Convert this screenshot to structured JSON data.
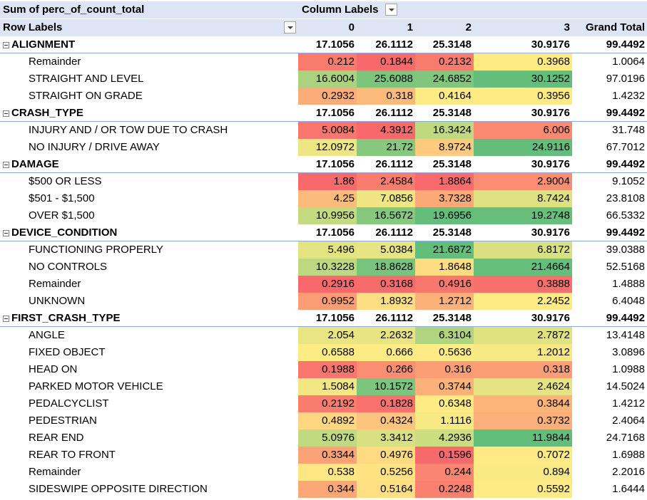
{
  "pivot": {
    "measure_label": "Sum of perc_of_count_total",
    "column_labels_label": "Column Labels",
    "row_labels_label": "Row Labels",
    "columns": [
      "0",
      "1",
      "2",
      "3"
    ],
    "grand_total_label": "Grand Total",
    "colors": {
      "header_bg": "#dde5f5",
      "low": "#f8696b",
      "mid": "#ffeb84",
      "high": "#63be7b"
    },
    "icons": {
      "collapse": "minus-box-icon",
      "filter": "dropdown-arrow-icon"
    },
    "groups": [
      {
        "name": "ALIGNMENT",
        "totals": [
          "17.1056",
          "26.1112",
          "25.3148",
          "30.9176"
        ],
        "grand_total": "99.4492",
        "rows": [
          {
            "label": "Remainder",
            "values": [
              "0.212",
              "0.1844",
              "0.2132",
              "0.3968"
            ],
            "grand_total": "1.0064"
          },
          {
            "label": "STRAIGHT AND LEVEL",
            "values": [
              "16.6004",
              "25.6088",
              "24.6852",
              "30.1252"
            ],
            "grand_total": "97.0196"
          },
          {
            "label": "STRAIGHT ON GRADE",
            "values": [
              "0.2932",
              "0.318",
              "0.4164",
              "0.3956"
            ],
            "grand_total": "1.4232"
          }
        ]
      },
      {
        "name": "CRASH_TYPE",
        "totals": [
          "17.1056",
          "26.1112",
          "25.3148",
          "30.9176"
        ],
        "grand_total": "99.4492",
        "rows": [
          {
            "label": "INJURY AND / OR TOW DUE TO CRASH",
            "values": [
              "5.0084",
              "4.3912",
              "16.3424",
              "6.006"
            ],
            "grand_total": "31.748"
          },
          {
            "label": "NO INJURY / DRIVE AWAY",
            "values": [
              "12.0972",
              "21.72",
              "8.9724",
              "24.9116"
            ],
            "grand_total": "67.7012"
          }
        ]
      },
      {
        "name": "DAMAGE",
        "totals": [
          "17.1056",
          "26.1112",
          "25.3148",
          "30.9176"
        ],
        "grand_total": "99.4492",
        "rows": [
          {
            "label": "$500 OR LESS",
            "values": [
              "1.86",
              "2.4584",
              "1.8864",
              "2.9004"
            ],
            "grand_total": "9.1052"
          },
          {
            "label": "$501 - $1,500",
            "values": [
              "4.25",
              "7.0856",
              "3.7328",
              "8.7424"
            ],
            "grand_total": "23.8108"
          },
          {
            "label": "OVER $1,500",
            "values": [
              "10.9956",
              "16.5672",
              "19.6956",
              "19.2748"
            ],
            "grand_total": "66.5332"
          }
        ]
      },
      {
        "name": "DEVICE_CONDITION",
        "totals": [
          "17.1056",
          "26.1112",
          "25.3148",
          "30.9176"
        ],
        "grand_total": "99.4492",
        "rows": [
          {
            "label": "FUNCTIONING PROPERLY",
            "values": [
              "5.496",
              "5.0384",
              "21.6872",
              "6.8172"
            ],
            "grand_total": "39.0388"
          },
          {
            "label": "NO CONTROLS",
            "values": [
              "10.3228",
              "18.8628",
              "1.8648",
              "21.4664"
            ],
            "grand_total": "52.5168"
          },
          {
            "label": "Remainder",
            "values": [
              "0.2916",
              "0.3168",
              "0.4916",
              "0.3888"
            ],
            "grand_total": "1.4888"
          },
          {
            "label": "UNKNOWN",
            "values": [
              "0.9952",
              "1.8932",
              "1.2712",
              "2.2452"
            ],
            "grand_total": "6.4048"
          }
        ]
      },
      {
        "name": "FIRST_CRASH_TYPE",
        "totals": [
          "17.1056",
          "26.1112",
          "25.3148",
          "30.9176"
        ],
        "grand_total": "99.4492",
        "rows": [
          {
            "label": "ANGLE",
            "values": [
              "2.054",
              "2.2632",
              "6.3104",
              "2.7872"
            ],
            "grand_total": "13.4148"
          },
          {
            "label": "FIXED OBJECT",
            "values": [
              "0.6588",
              "0.666",
              "0.5636",
              "1.2012"
            ],
            "grand_total": "3.0896"
          },
          {
            "label": "HEAD ON",
            "values": [
              "0.1988",
              "0.266",
              "0.316",
              "0.318"
            ],
            "grand_total": "1.0988"
          },
          {
            "label": "PARKED MOTOR VEHICLE",
            "values": [
              "1.5084",
              "10.1572",
              "0.3744",
              "2.4624"
            ],
            "grand_total": "14.5024"
          },
          {
            "label": "PEDALCYCLIST",
            "values": [
              "0.2192",
              "0.1828",
              "0.6348",
              "0.3844"
            ],
            "grand_total": "1.4212"
          },
          {
            "label": "PEDESTRIAN",
            "values": [
              "0.4892",
              "0.4324",
              "1.1116",
              "0.3732"
            ],
            "grand_total": "2.4064"
          },
          {
            "label": "REAR END",
            "values": [
              "5.0976",
              "3.3412",
              "4.2936",
              "11.9844"
            ],
            "grand_total": "24.7168"
          },
          {
            "label": "REAR TO FRONT",
            "values": [
              "0.3344",
              "0.4976",
              "0.1596",
              "0.7072"
            ],
            "grand_total": "1.6988"
          },
          {
            "label": "Remainder",
            "values": [
              "0.538",
              "0.5256",
              "0.244",
              "0.894"
            ],
            "grand_total": "2.2016"
          },
          {
            "label": "SIDESWIPE OPPOSITE DIRECTION",
            "values": [
              "0.344",
              "0.5164",
              "0.2248",
              "0.5592"
            ],
            "grand_total": "1.6444"
          }
        ]
      }
    ]
  }
}
